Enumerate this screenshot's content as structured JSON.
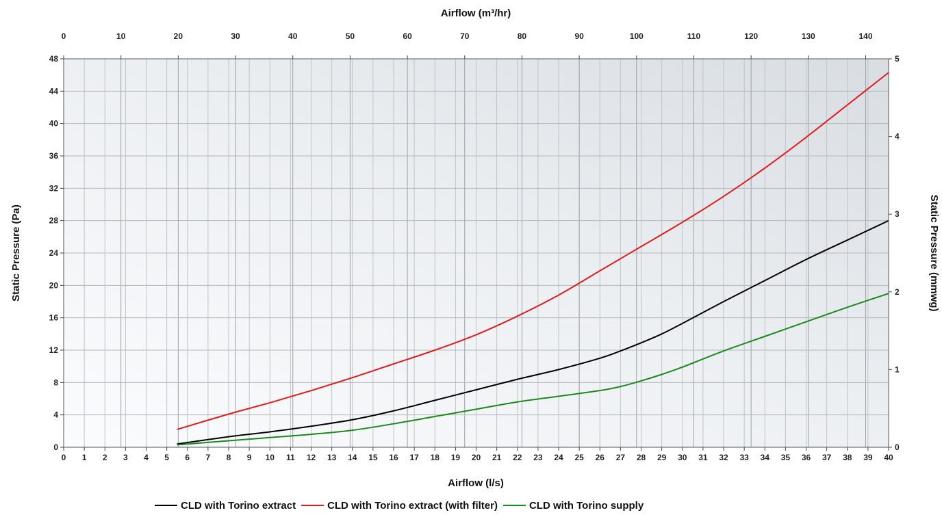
{
  "chart_data": {
    "type": "line",
    "xlabel": "Airflow (l/s)",
    "x2label": "Airflow (m³/hr)",
    "ylabel": "Static Pressure (Pa)",
    "y2label": "Static Pressure (mmwg)",
    "xlim": [
      0,
      40
    ],
    "x2lim": [
      0,
      144
    ],
    "ylim": [
      0,
      48
    ],
    "y2lim": [
      0,
      5
    ],
    "x_ticks": [
      0,
      1,
      2,
      3,
      4,
      5,
      6,
      7,
      8,
      9,
      10,
      11,
      12,
      13,
      14,
      15,
      16,
      17,
      18,
      19,
      20,
      21,
      22,
      23,
      24,
      25,
      26,
      27,
      28,
      29,
      30,
      31,
      32,
      33,
      34,
      35,
      36,
      37,
      38,
      39,
      40
    ],
    "x2_ticks": [
      0,
      10,
      20,
      30,
      40,
      50,
      60,
      70,
      80,
      90,
      100,
      110,
      120,
      130,
      140
    ],
    "y_ticks": [
      0,
      4,
      8,
      12,
      16,
      20,
      24,
      28,
      32,
      36,
      40,
      44,
      48
    ],
    "y2_ticks": [
      0,
      1,
      2,
      3,
      4,
      5
    ],
    "grid": true,
    "legend_position": "bottom",
    "series": [
      {
        "name": "CLD with Torino extract",
        "color": "#000000",
        "x": [
          5.5,
          8,
          10,
          12,
          14,
          16,
          18,
          20,
          22,
          24,
          26,
          27,
          28,
          29,
          30,
          32,
          34,
          36,
          38,
          40
        ],
        "y": [
          0.4,
          1.3,
          1.9,
          2.6,
          3.4,
          4.5,
          5.8,
          7.1,
          8.4,
          9.6,
          11.0,
          11.9,
          12.9,
          14.0,
          15.3,
          18.0,
          20.6,
          23.2,
          25.6,
          28.0
        ]
      },
      {
        "name": "CLD with Torino extract (with filter)",
        "color": "#e21b1b",
        "x": [
          5.5,
          8,
          10,
          12,
          14,
          16,
          18,
          20,
          22,
          24,
          26,
          28,
          30,
          32,
          34,
          36,
          38,
          40
        ],
        "y": [
          2.2,
          4.1,
          5.5,
          7.0,
          8.6,
          10.3,
          12.0,
          13.9,
          16.2,
          18.8,
          21.8,
          24.8,
          27.8,
          31.0,
          34.5,
          38.3,
          42.3,
          46.3
        ]
      },
      {
        "name": "CLD with Torino supply",
        "color": "#1a8a1a",
        "x": [
          5.5,
          8,
          10,
          12,
          14,
          16,
          18,
          20,
          22,
          24,
          26,
          27,
          28,
          29,
          30,
          32,
          34,
          36,
          38,
          40
        ],
        "y": [
          0.3,
          0.8,
          1.2,
          1.6,
          2.1,
          2.9,
          3.8,
          4.7,
          5.6,
          6.3,
          7.0,
          7.5,
          8.2,
          9.0,
          9.9,
          11.9,
          13.7,
          15.5,
          17.3,
          19.0
        ]
      }
    ]
  }
}
